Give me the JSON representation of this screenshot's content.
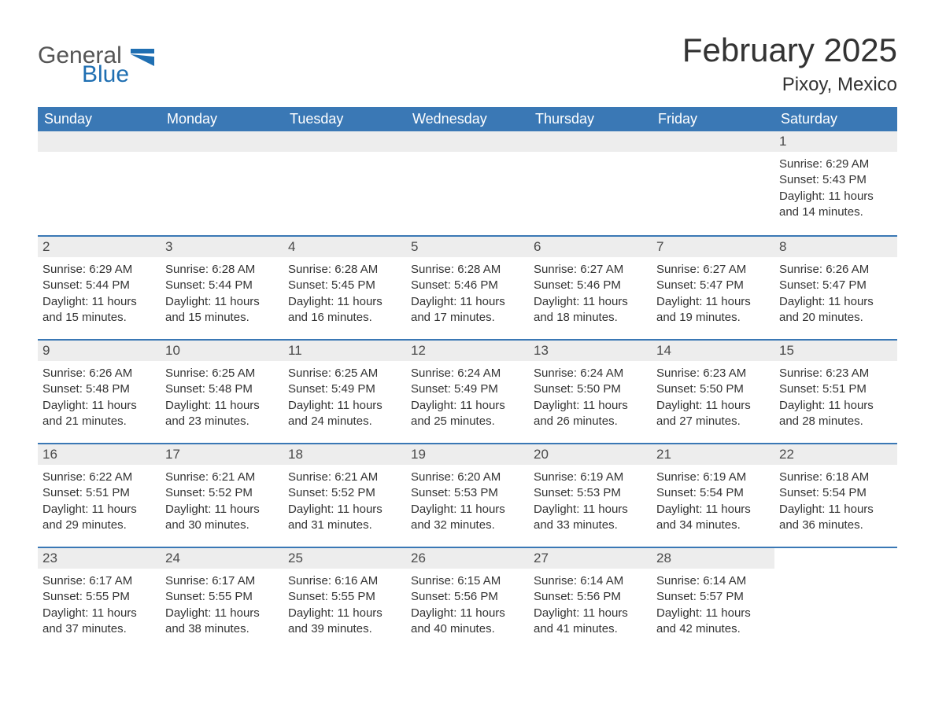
{
  "logo": {
    "text_top": "General",
    "text_bottom": "Blue",
    "icon_color": "#1f6fb2",
    "text_top_color": "#555555",
    "text_bottom_color": "#1f6fb2"
  },
  "title": {
    "month_year": "February 2025",
    "location": "Pixoy, Mexico"
  },
  "colors": {
    "header_bg": "#3a78b5",
    "header_text": "#ffffff",
    "daynum_bg": "#ededed",
    "divider": "#3a78b5",
    "body_text": "#333333",
    "page_bg": "#ffffff"
  },
  "typography": {
    "month_title_fontsize": 42,
    "location_fontsize": 24,
    "weekday_fontsize": 18,
    "daynum_fontsize": 17,
    "detail_fontsize": 15
  },
  "calendar": {
    "weekdays": [
      "Sunday",
      "Monday",
      "Tuesday",
      "Wednesday",
      "Thursday",
      "Friday",
      "Saturday"
    ],
    "leading_blanks": 6,
    "days": [
      {
        "num": "1",
        "sunrise": "6:29 AM",
        "sunset": "5:43 PM",
        "daylight": "11 hours and 14 minutes."
      },
      {
        "num": "2",
        "sunrise": "6:29 AM",
        "sunset": "5:44 PM",
        "daylight": "11 hours and 15 minutes."
      },
      {
        "num": "3",
        "sunrise": "6:28 AM",
        "sunset": "5:44 PM",
        "daylight": "11 hours and 15 minutes."
      },
      {
        "num": "4",
        "sunrise": "6:28 AM",
        "sunset": "5:45 PM",
        "daylight": "11 hours and 16 minutes."
      },
      {
        "num": "5",
        "sunrise": "6:28 AM",
        "sunset": "5:46 PM",
        "daylight": "11 hours and 17 minutes."
      },
      {
        "num": "6",
        "sunrise": "6:27 AM",
        "sunset": "5:46 PM",
        "daylight": "11 hours and 18 minutes."
      },
      {
        "num": "7",
        "sunrise": "6:27 AM",
        "sunset": "5:47 PM",
        "daylight": "11 hours and 19 minutes."
      },
      {
        "num": "8",
        "sunrise": "6:26 AM",
        "sunset": "5:47 PM",
        "daylight": "11 hours and 20 minutes."
      },
      {
        "num": "9",
        "sunrise": "6:26 AM",
        "sunset": "5:48 PM",
        "daylight": "11 hours and 21 minutes."
      },
      {
        "num": "10",
        "sunrise": "6:25 AM",
        "sunset": "5:48 PM",
        "daylight": "11 hours and 23 minutes."
      },
      {
        "num": "11",
        "sunrise": "6:25 AM",
        "sunset": "5:49 PM",
        "daylight": "11 hours and 24 minutes."
      },
      {
        "num": "12",
        "sunrise": "6:24 AM",
        "sunset": "5:49 PM",
        "daylight": "11 hours and 25 minutes."
      },
      {
        "num": "13",
        "sunrise": "6:24 AM",
        "sunset": "5:50 PM",
        "daylight": "11 hours and 26 minutes."
      },
      {
        "num": "14",
        "sunrise": "6:23 AM",
        "sunset": "5:50 PM",
        "daylight": "11 hours and 27 minutes."
      },
      {
        "num": "15",
        "sunrise": "6:23 AM",
        "sunset": "5:51 PM",
        "daylight": "11 hours and 28 minutes."
      },
      {
        "num": "16",
        "sunrise": "6:22 AM",
        "sunset": "5:51 PM",
        "daylight": "11 hours and 29 minutes."
      },
      {
        "num": "17",
        "sunrise": "6:21 AM",
        "sunset": "5:52 PM",
        "daylight": "11 hours and 30 minutes."
      },
      {
        "num": "18",
        "sunrise": "6:21 AM",
        "sunset": "5:52 PM",
        "daylight": "11 hours and 31 minutes."
      },
      {
        "num": "19",
        "sunrise": "6:20 AM",
        "sunset": "5:53 PM",
        "daylight": "11 hours and 32 minutes."
      },
      {
        "num": "20",
        "sunrise": "6:19 AM",
        "sunset": "5:53 PM",
        "daylight": "11 hours and 33 minutes."
      },
      {
        "num": "21",
        "sunrise": "6:19 AM",
        "sunset": "5:54 PM",
        "daylight": "11 hours and 34 minutes."
      },
      {
        "num": "22",
        "sunrise": "6:18 AM",
        "sunset": "5:54 PM",
        "daylight": "11 hours and 36 minutes."
      },
      {
        "num": "23",
        "sunrise": "6:17 AM",
        "sunset": "5:55 PM",
        "daylight": "11 hours and 37 minutes."
      },
      {
        "num": "24",
        "sunrise": "6:17 AM",
        "sunset": "5:55 PM",
        "daylight": "11 hours and 38 minutes."
      },
      {
        "num": "25",
        "sunrise": "6:16 AM",
        "sunset": "5:55 PM",
        "daylight": "11 hours and 39 minutes."
      },
      {
        "num": "26",
        "sunrise": "6:15 AM",
        "sunset": "5:56 PM",
        "daylight": "11 hours and 40 minutes."
      },
      {
        "num": "27",
        "sunrise": "6:14 AM",
        "sunset": "5:56 PM",
        "daylight": "11 hours and 41 minutes."
      },
      {
        "num": "28",
        "sunrise": "6:14 AM",
        "sunset": "5:57 PM",
        "daylight": "11 hours and 42 minutes."
      }
    ],
    "labels": {
      "sunrise_prefix": "Sunrise: ",
      "sunset_prefix": "Sunset: ",
      "daylight_prefix": "Daylight: "
    }
  }
}
